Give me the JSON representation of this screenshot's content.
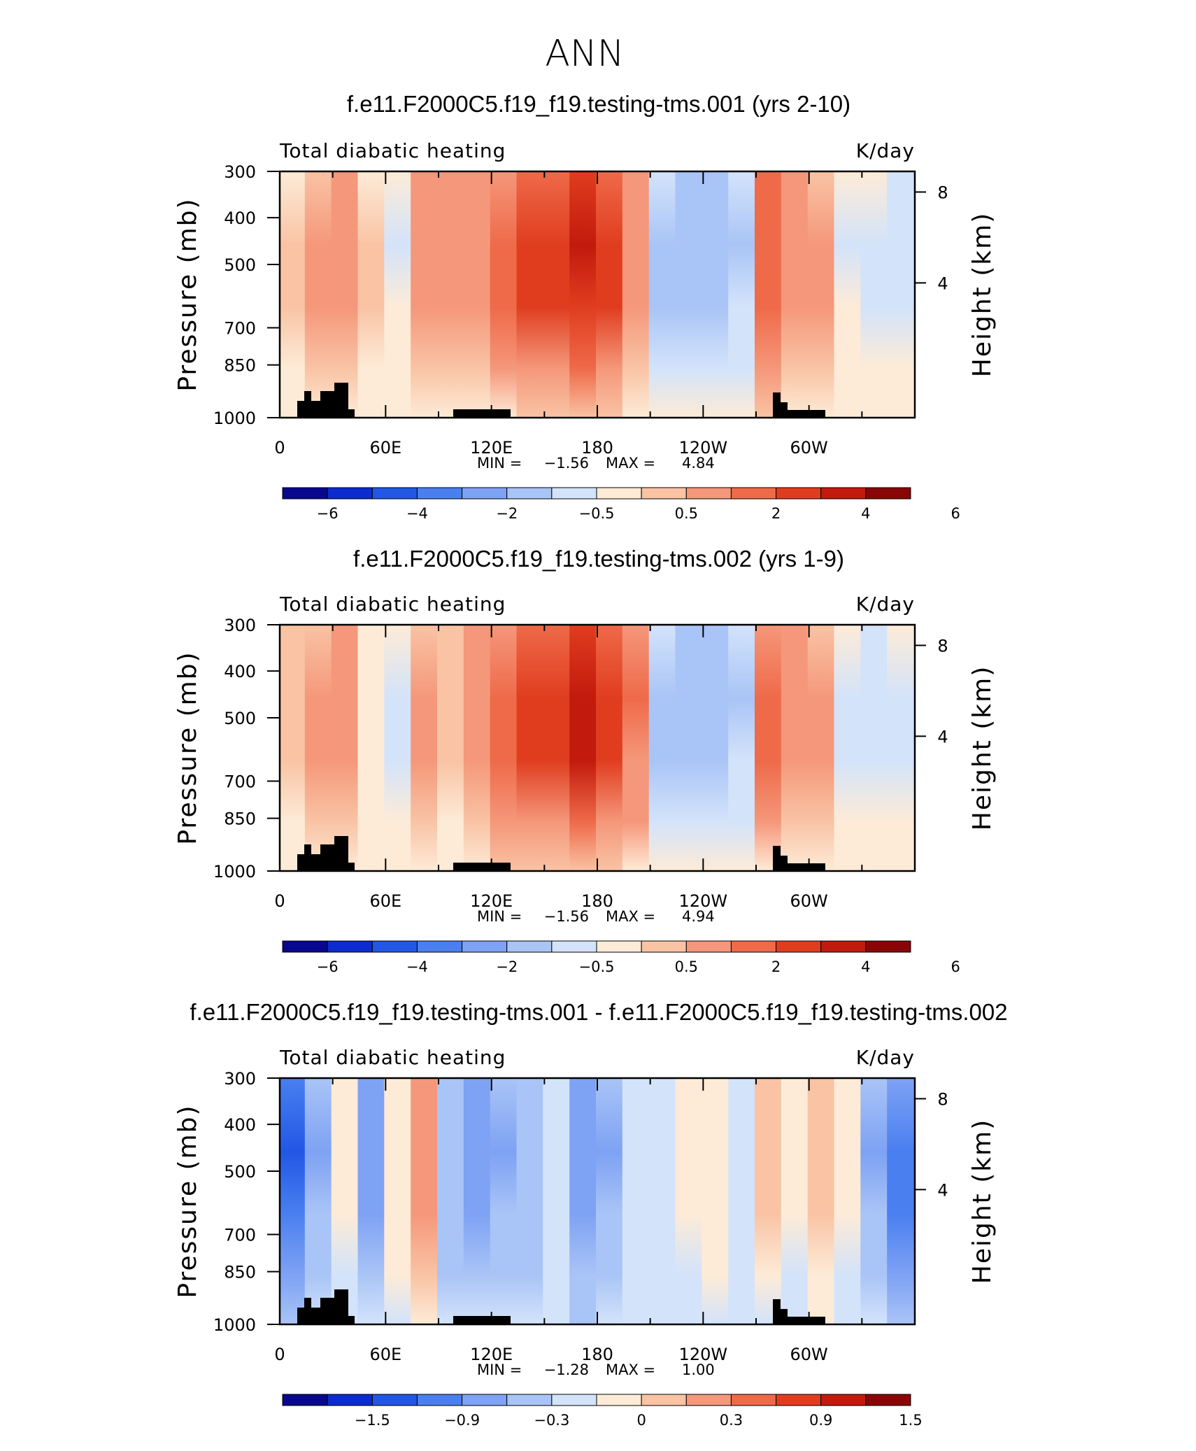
{
  "figure_title": "ANN",
  "chart_data": [
    {
      "type": "contour",
      "title": "f.e11.F2000C5.f19_f19.testing-tms.001 (yrs 2-10)",
      "left_label": "Total diabatic heating",
      "right_label": "K/day",
      "ylabel": "Pressure (mb)",
      "y2label": "Height (km)",
      "xticks": [
        "0",
        "60E",
        "120E",
        "180",
        "120W",
        "60W"
      ],
      "yticks": [
        "300",
        "400",
        "500",
        "700",
        "850",
        "1000"
      ],
      "y2ticks": [
        "8",
        "4"
      ],
      "min_label": "MIN =",
      "min_value": "−1.56",
      "max_label": "MAX =",
      "max_value": "4.84",
      "colorbar_labels": [
        "−6",
        "−4",
        "−2",
        "−0.5",
        "0.5",
        "2",
        "4",
        "6"
      ],
      "profile": [
        0.6,
        1.2,
        1.8,
        0.6,
        -0.5,
        1.8,
        1.4,
        1.6,
        2.4,
        3.5,
        3.8,
        4.4,
        3.6,
        2.0,
        -1.2,
        -1.5,
        -1.4,
        -1.0,
        2.8,
        2.0,
        1.2,
        -0.5,
        -0.6,
        -0.8
      ]
    },
    {
      "type": "contour",
      "title": "f.e11.F2000C5.f19_f19.testing-tms.002 (yrs 1-9)",
      "left_label": "Total diabatic heating",
      "right_label": "K/day",
      "ylabel": "Pressure (mb)",
      "y2label": "Height (km)",
      "xticks": [
        "0",
        "60E",
        "120E",
        "180",
        "120W",
        "60W"
      ],
      "yticks": [
        "300",
        "400",
        "500",
        "700",
        "850",
        "1000"
      ],
      "y2ticks": [
        "8",
        "4"
      ],
      "min_label": "MIN =",
      "min_value": "−1.56",
      "max_label": "MAX =",
      "max_value": "4.94",
      "colorbar_labels": [
        "−6",
        "−4",
        "−2",
        "−0.5",
        "0.5",
        "2",
        "4",
        "6"
      ],
      "profile": [
        0.7,
        1.3,
        1.6,
        0.5,
        -0.6,
        1.2,
        1.0,
        1.4,
        2.6,
        3.7,
        3.6,
        4.6,
        3.4,
        2.1,
        -1.3,
        -1.5,
        -1.5,
        -1.0,
        2.4,
        1.6,
        1.2,
        -0.6,
        -0.7,
        -0.6
      ]
    },
    {
      "type": "contour",
      "title": "f.e11.F2000C5.f19_f19.testing-tms.001 - f.e11.F2000C5.f19_f19.testing-tms.002",
      "left_label": "Total diabatic heating",
      "right_label": "K/day",
      "ylabel": "Pressure (mb)",
      "y2label": "Height (km)",
      "xticks": [
        "0",
        "60E",
        "120E",
        "180",
        "120W",
        "60W"
      ],
      "yticks": [
        "300",
        "400",
        "500",
        "700",
        "850",
        "1000"
      ],
      "y2ticks": [
        "8",
        "4"
      ],
      "min_label": "MIN =",
      "min_value": "−1.28",
      "max_label": "MAX =",
      "max_value": "1.00",
      "colorbar_labels": [
        "−1.5",
        "−0.9",
        "−0.3",
        "0",
        "0.3",
        "0.9",
        "1.5"
      ],
      "profile": [
        -0.9,
        -0.3,
        0.2,
        -0.4,
        0.3,
        0.8,
        -0.2,
        -0.4,
        -0.3,
        -0.2,
        0.1,
        -0.5,
        -0.3,
        0.0,
        0.1,
        0.2,
        0.3,
        0.1,
        0.5,
        0.2,
        0.6,
        0.2,
        -0.3,
        -0.7
      ]
    }
  ],
  "colors": {
    "scale": [
      "#08088f",
      "#0c2bd0",
      "#2257e6",
      "#4a7ff0",
      "#7ea2f4",
      "#a9c4f6",
      "#d3e3fa",
      "#fdebd7",
      "#f9c3a4",
      "#f5977a",
      "#ee6a49",
      "#e03d1f",
      "#c21a0d",
      "#8a0606"
    ],
    "topography": "#000000"
  }
}
